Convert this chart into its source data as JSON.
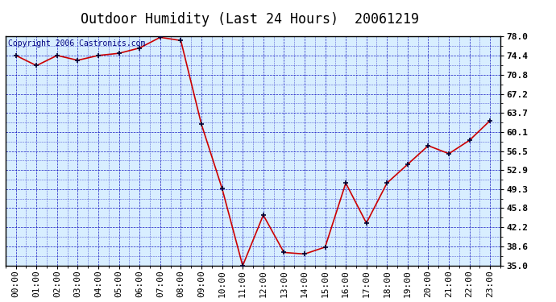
{
  "title": "Outdoor Humidity (Last 24 Hours)  20061219",
  "copyright": "Copyright 2006 Castronics.com",
  "x_labels": [
    "00:00",
    "01:00",
    "02:00",
    "03:00",
    "04:00",
    "05:00",
    "06:00",
    "07:00",
    "08:00",
    "09:00",
    "10:00",
    "11:00",
    "12:00",
    "13:00",
    "14:00",
    "15:00",
    "16:00",
    "17:00",
    "18:00",
    "19:00",
    "20:00",
    "21:00",
    "22:00",
    "23:00"
  ],
  "y_values": [
    74.4,
    72.5,
    74.4,
    73.5,
    74.4,
    74.8,
    75.8,
    77.8,
    77.2,
    61.5,
    49.5,
    35.0,
    44.5,
    37.5,
    37.2,
    38.5,
    50.5,
    43.0,
    50.5,
    54.0,
    57.5,
    56.0,
    58.5,
    62.2
  ],
  "y_ticks": [
    35.0,
    38.6,
    42.2,
    45.8,
    49.3,
    52.9,
    56.5,
    60.1,
    63.7,
    67.2,
    70.8,
    74.4,
    78.0
  ],
  "ylim": [
    35.0,
    78.0
  ],
  "line_color": "#cc0000",
  "marker_color": "#000033",
  "grid_color": "#0000bb",
  "bg_color": "#ffffff",
  "plot_bg_color": "#d8eeff",
  "title_fontsize": 12,
  "copyright_fontsize": 7,
  "tick_fontsize": 8,
  "title_color": "#000000",
  "border_color": "#000000"
}
